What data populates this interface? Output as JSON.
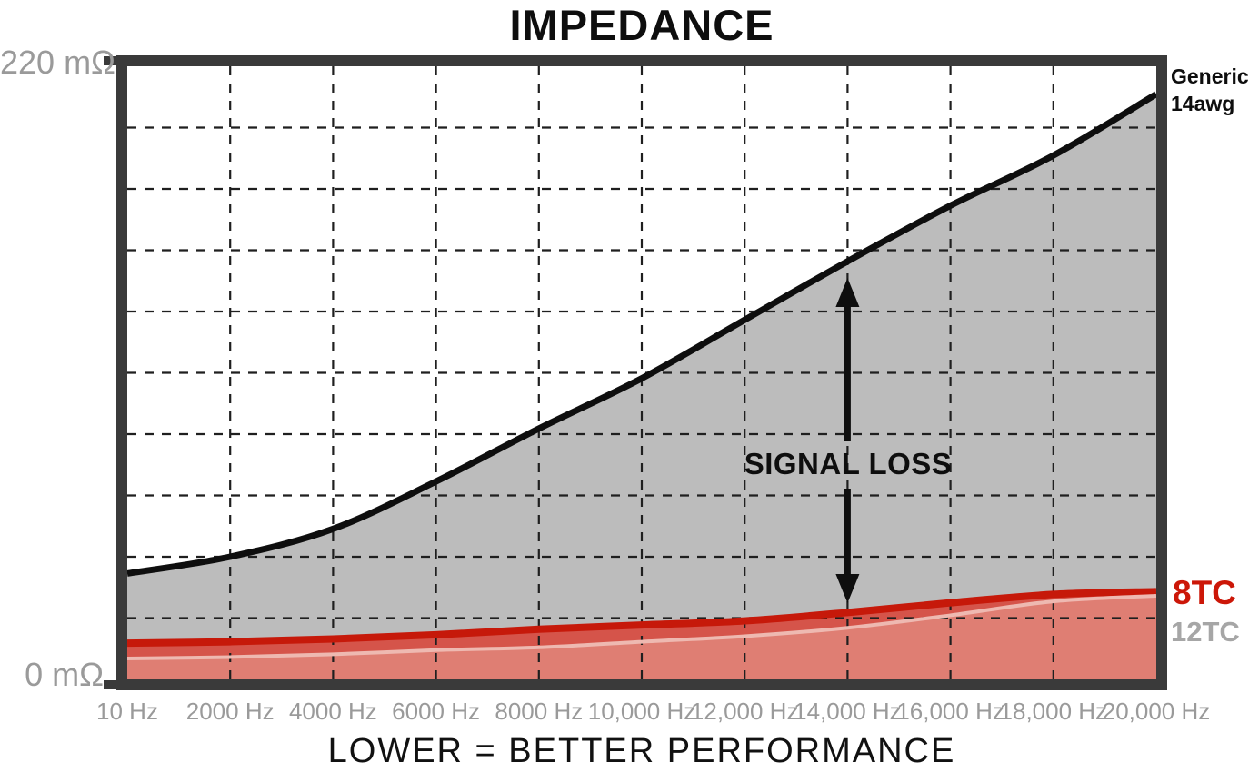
{
  "title": "IMPEDANCE",
  "footer": "LOWER = BETTER PERFORMANCE",
  "y_axis": {
    "top_label": "220 mΩ",
    "bottom_label": "0 mΩ"
  },
  "annotation": {
    "label": "SIGNAL LOSS"
  },
  "right_labels": {
    "generic_line1": "Generic",
    "generic_line2": "14awg",
    "series_8tc": "8TC",
    "series_12tc": "12TC"
  },
  "colors": {
    "border": "#3a3a3a",
    "grid": "#1f1f1f",
    "axis_text": "#9a9a9a",
    "title_text": "#0e0e0e",
    "generic_line": "#0e0e0e",
    "generic_fill": "#bcbcbc",
    "tc8_line": "#c6190a",
    "tc8_fill": "#d5544a",
    "tc12_line": "#eeb9b1",
    "tc12_fill": "#df7e73",
    "tc8_label": "#cc1708",
    "tc12_label": "#a6a6a6"
  },
  "chart_data": {
    "type": "area",
    "title": "IMPEDANCE",
    "xlabel": "LOWER = BETTER PERFORMANCE",
    "ylabel_unit": "mΩ",
    "ylim": [
      0,
      220
    ],
    "y_divisions": 10,
    "grid": true,
    "x_values_hz": [
      10,
      2000,
      4000,
      6000,
      8000,
      10000,
      12000,
      14000,
      16000,
      18000,
      20000
    ],
    "x_tick_labels": [
      "10 Hz",
      "2000 Hz",
      "4000 Hz",
      "6000 Hz",
      "8000 Hz",
      "10,000 Hz",
      "12,000 Hz",
      "14,000 Hz",
      "16,000 Hz",
      "18,000 Hz",
      "20,000 Hz"
    ],
    "series": [
      {
        "name": "Generic 14awg",
        "values": [
          38,
          44,
          54,
          71,
          90,
          108,
          129,
          150,
          170,
          188,
          210
        ]
      },
      {
        "name": "8TC",
        "values": [
          13,
          13.5,
          14.5,
          16,
          18,
          19.5,
          21,
          24,
          27.5,
          30.5,
          31.5
        ]
      },
      {
        "name": "12TC",
        "values": [
          7.5,
          8,
          9,
          10.5,
          11.5,
          13.5,
          15.5,
          18.5,
          23,
          28,
          30
        ]
      }
    ],
    "annotations": [
      {
        "text": "SIGNAL LOSS",
        "x_hz": 14000,
        "arrow": "vertical-double",
        "arrow_top_m_ohm": 144,
        "arrow_bottom_m_ohm": 28
      }
    ]
  }
}
